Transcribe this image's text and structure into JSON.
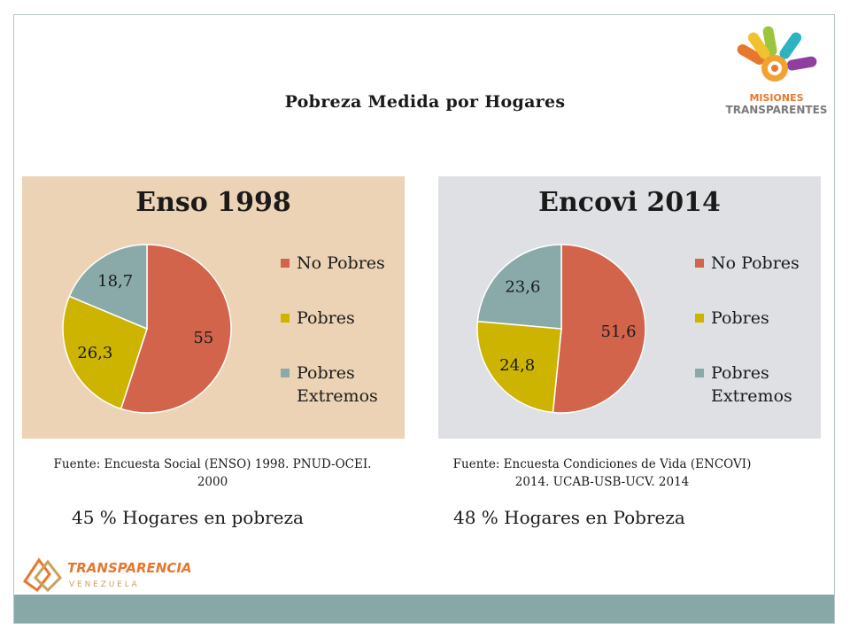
{
  "title": "Pobreza Medida por Hogares",
  "logos": {
    "misiones": {
      "line1": "MISIONES",
      "line2": "TRANSPARENTES"
    },
    "transparencia": {
      "line1": "TRANSPARENCIA",
      "line2": "V E N E Z U E L A"
    }
  },
  "colors": {
    "no_pobres": "#d2644b",
    "pobres": "#ccb400",
    "pobres_extremos": "#8aaaaa",
    "panel_left_bg": "#ecd3b5",
    "panel_right_bg": "#dfe0e4",
    "bottom_band": "#88a8a8"
  },
  "chart_data": [
    {
      "type": "pie",
      "title": "Enso 1998",
      "categories": [
        "No Pobres",
        "Pobres",
        "Pobres Extremos"
      ],
      "values": [
        55,
        26.3,
        18.7
      ],
      "labels": [
        "55",
        "26,3",
        "18,7"
      ],
      "legend_position": "right"
    },
    {
      "type": "pie",
      "title": "Encovi 2014",
      "categories": [
        "No Pobres",
        "Pobres",
        "Pobres Extremos"
      ],
      "values": [
        51.6,
        24.8,
        23.6
      ],
      "labels": [
        "51,6",
        "24,8",
        "23,6"
      ],
      "legend_position": "right"
    }
  ],
  "legend": {
    "no_pobres": "No Pobres",
    "pobres": "Pobres",
    "pobres_extremos_1": "Pobres",
    "pobres_extremos_2": "Extremos"
  },
  "sources": {
    "left_line1": "Fuente: Encuesta Social (ENSO) 1998. PNUD-OCEI.",
    "left_line2": "2000",
    "right_line1": "Fuente: Encuesta Condiciones de Vida (ENCOVI)",
    "right_line2": "2014. UCAB-USB-UCV. 2014"
  },
  "summaries": {
    "left": "45 % Hogares en pobreza",
    "right": "48 % Hogares en Pobreza"
  }
}
